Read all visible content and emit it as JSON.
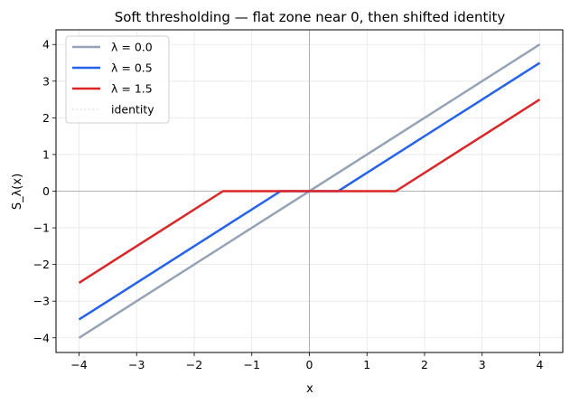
{
  "chart_data": {
    "type": "line",
    "title": "Soft thresholding — flat zone near 0, then shifted identity",
    "xlabel": "x",
    "ylabel": "S_λ(x)",
    "xlim": [
      -4.4,
      4.4
    ],
    "ylim": [
      -4.4,
      4.4
    ],
    "xticks": [
      -4,
      -3,
      -2,
      -1,
      0,
      1,
      2,
      3,
      4
    ],
    "yticks": [
      -4,
      -3,
      -2,
      -1,
      0,
      1,
      2,
      3,
      4
    ],
    "xtick_labels": [
      "−4",
      "−3",
      "−2",
      "−1",
      "0",
      "1",
      "2",
      "3",
      "4"
    ],
    "ytick_labels": [
      "−4",
      "−3",
      "−2",
      "−1",
      "0",
      "1",
      "2",
      "3",
      "4"
    ],
    "grid": true,
    "legend_position": "top-left",
    "series": [
      {
        "name": "λ = 0.0",
        "color": "#94a3b8",
        "style": "solid",
        "x": [
          -4,
          4
        ],
        "y": [
          -4,
          4
        ]
      },
      {
        "name": "λ = 0.5",
        "color": "#2563eb",
        "style": "solid",
        "x": [
          -4,
          -0.5,
          0.5,
          4
        ],
        "y": [
          -3.5,
          0,
          0,
          3.5
        ]
      },
      {
        "name": "λ = 1.5",
        "color": "#dc2626",
        "style": "solid",
        "x": [
          -4,
          -1.5,
          1.5,
          4
        ],
        "y": [
          -2.5,
          0,
          0,
          2.5
        ]
      },
      {
        "name": "identity",
        "color": "#cbd5e1",
        "style": "dotted",
        "x": [
          -4,
          4
        ],
        "y": [
          -4,
          4
        ]
      }
    ]
  }
}
